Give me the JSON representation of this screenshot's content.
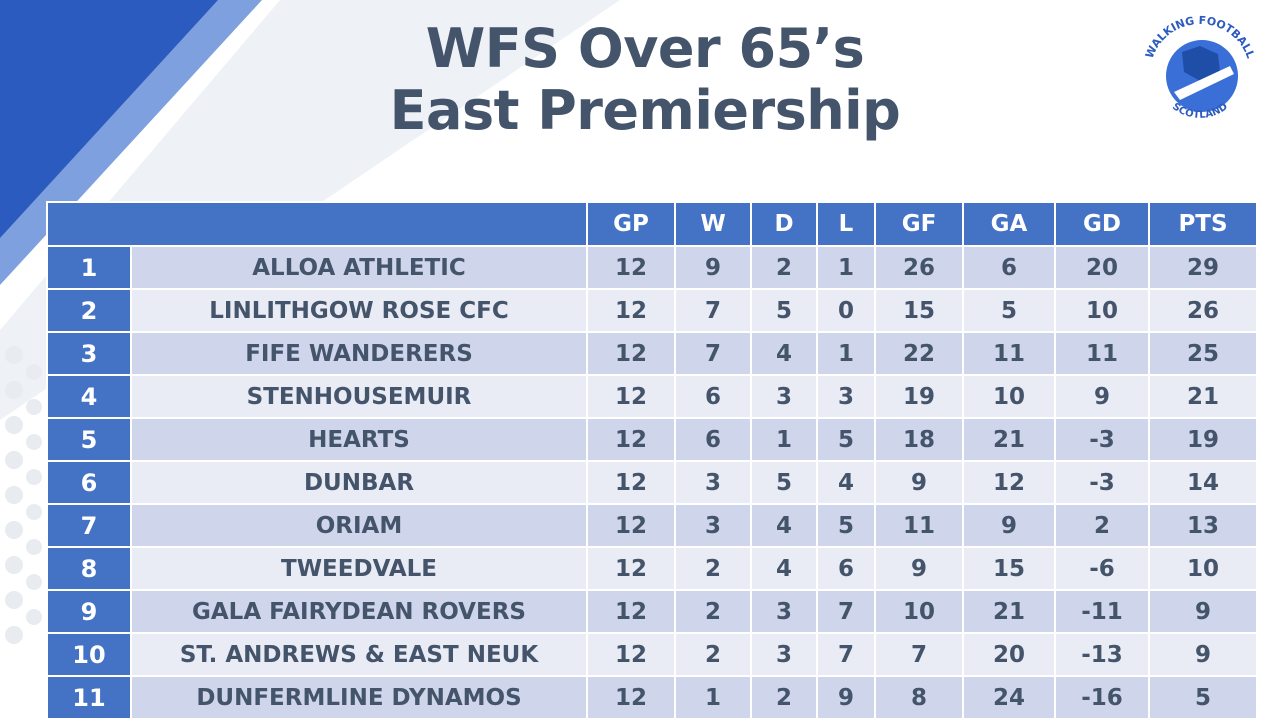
{
  "title": {
    "line1": "WFS Over 65’s",
    "line2": "East Premiership"
  },
  "logo": {
    "text_top": "WALKING FOOTBALL",
    "text_bottom": "SCOTLAND",
    "icon": "football-saltire-logo"
  },
  "colors": {
    "header_bg": "#4472c4",
    "row_odd": "#cfd5ea",
    "row_even": "#e9ebf5",
    "title": "#44546a"
  },
  "table": {
    "columns": [
      "",
      "GP",
      "W",
      "D",
      "L",
      "GF",
      "GA",
      "GD",
      "PTS"
    ],
    "rows": [
      {
        "pos": "1",
        "team": "ALLOA ATHLETIC",
        "gp": "12",
        "w": "9",
        "d": "2",
        "l": "1",
        "gf": "26",
        "ga": "6",
        "gd": "20",
        "pts": "29"
      },
      {
        "pos": "2",
        "team": "LINLITHGOW ROSE CFC",
        "gp": "12",
        "w": "7",
        "d": "5",
        "l": "0",
        "gf": "15",
        "ga": "5",
        "gd": "10",
        "pts": "26"
      },
      {
        "pos": "3",
        "team": "FIFE WANDERERS",
        "gp": "12",
        "w": "7",
        "d": "4",
        "l": "1",
        "gf": "22",
        "ga": "11",
        "gd": "11",
        "pts": "25"
      },
      {
        "pos": "4",
        "team": "STENHOUSEMUIR",
        "gp": "12",
        "w": "6",
        "d": "3",
        "l": "3",
        "gf": "19",
        "ga": "10",
        "gd": "9",
        "pts": "21"
      },
      {
        "pos": "5",
        "team": "HEARTS",
        "gp": "12",
        "w": "6",
        "d": "1",
        "l": "5",
        "gf": "18",
        "ga": "21",
        "gd": "-3",
        "pts": "19"
      },
      {
        "pos": "6",
        "team": "DUNBAR",
        "gp": "12",
        "w": "3",
        "d": "5",
        "l": "4",
        "gf": "9",
        "ga": "12",
        "gd": "-3",
        "pts": "14"
      },
      {
        "pos": "7",
        "team": "ORIAM",
        "gp": "12",
        "w": "3",
        "d": "4",
        "l": "5",
        "gf": "11",
        "ga": "9",
        "gd": "2",
        "pts": "13"
      },
      {
        "pos": "8",
        "team": "TWEEDVALE",
        "gp": "12",
        "w": "2",
        "d": "4",
        "l": "6",
        "gf": "9",
        "ga": "15",
        "gd": "-6",
        "pts": "10"
      },
      {
        "pos": "9",
        "team": "GALA FAIRYDEAN ROVERS",
        "gp": "12",
        "w": "2",
        "d": "3",
        "l": "7",
        "gf": "10",
        "ga": "21",
        "gd": "-11",
        "pts": "9"
      },
      {
        "pos": "10",
        "team": "ST. ANDREWS & EAST NEUK",
        "gp": "12",
        "w": "2",
        "d": "3",
        "l": "7",
        "gf": "7",
        "ga": "20",
        "gd": "-13",
        "pts": "9"
      },
      {
        "pos": "11",
        "team": "DUNFERMLINE DYNAMOS",
        "gp": "12",
        "w": "1",
        "d": "2",
        "l": "9",
        "gf": "8",
        "ga": "24",
        "gd": "-16",
        "pts": "5"
      }
    ]
  }
}
